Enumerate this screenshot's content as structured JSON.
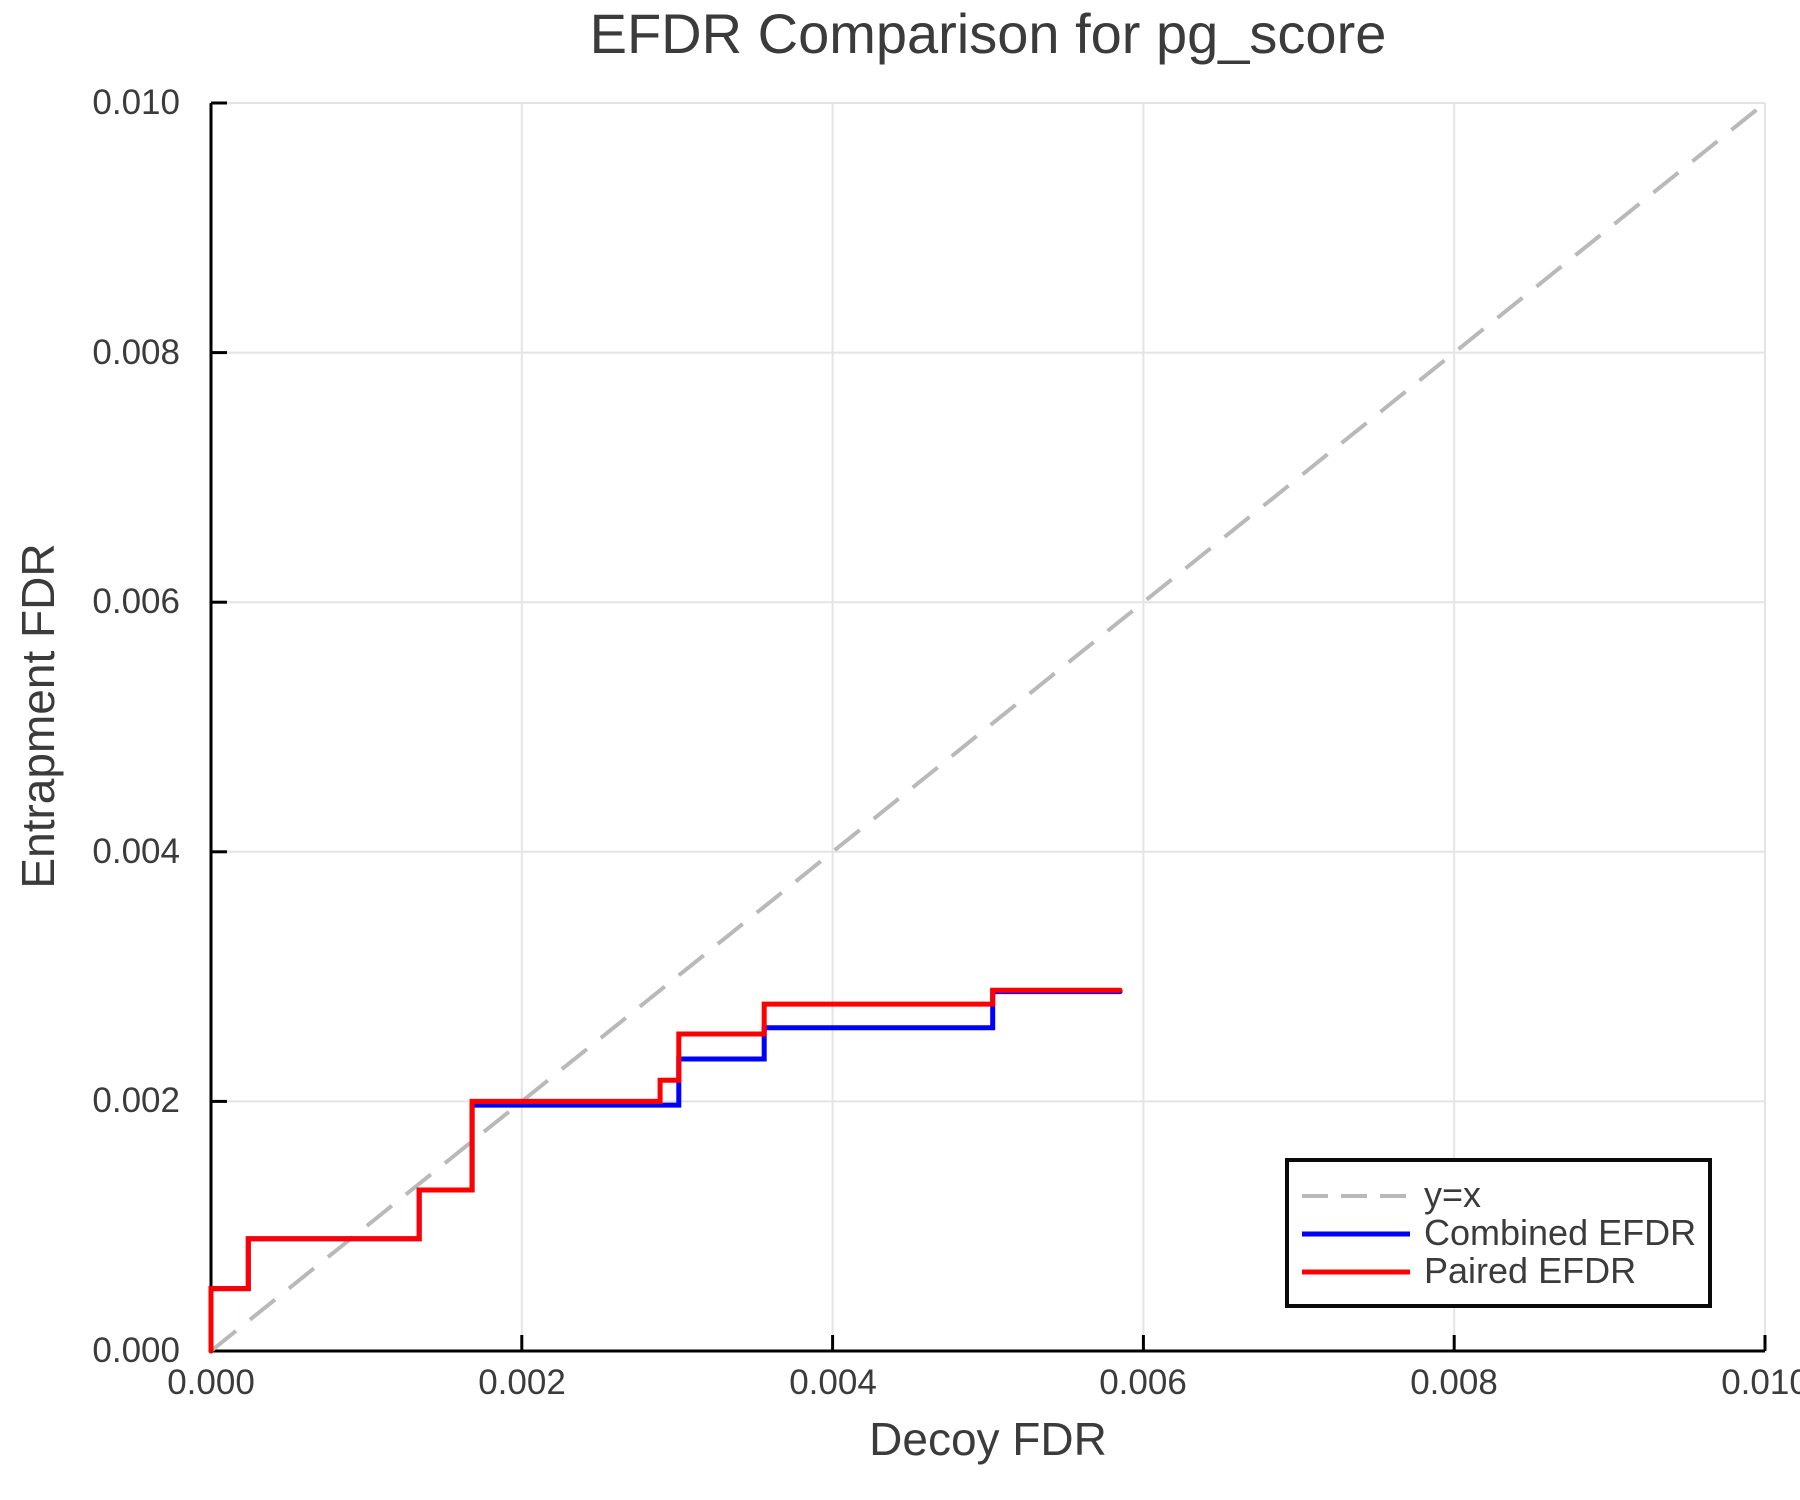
{
  "chart_data": {
    "type": "line",
    "title": "EFDR Comparison for pg_score",
    "xlabel": "Decoy FDR",
    "ylabel": "Entrapment FDR",
    "xlim": [
      0.0,
      0.01
    ],
    "ylim": [
      0.0,
      0.01
    ],
    "x_ticks": [
      0.0,
      0.002,
      0.004,
      0.006,
      0.008,
      0.01
    ],
    "y_ticks": [
      0.0,
      0.002,
      0.004,
      0.006,
      0.008,
      0.01
    ],
    "x_tick_labels": [
      "0.000",
      "0.002",
      "0.004",
      "0.006",
      "0.008",
      "0.010"
    ],
    "y_tick_labels": [
      "0.000",
      "0.002",
      "0.004",
      "0.006",
      "0.008",
      "0.010"
    ],
    "grid": true,
    "grid_color": "#e4e4e4",
    "spine_color": "#000000",
    "text_color": "#3b3b3b",
    "legend_position": "lower right",
    "series": [
      {
        "name": "y=x",
        "color": "#b9b9b9",
        "style": "dashed",
        "line_width": 4,
        "points": [
          [
            0.0,
            0.0
          ],
          [
            0.01,
            0.01
          ]
        ]
      },
      {
        "name": "Combined EFDR",
        "color": "#0000ff",
        "style": "solid",
        "line_width": 5,
        "points": [
          [
            0.0,
            0.0
          ],
          [
            0.0,
            0.0005
          ],
          [
            0.00024,
            0.0005
          ],
          [
            0.00024,
            0.0009
          ],
          [
            0.00134,
            0.0009
          ],
          [
            0.00134,
            0.00129
          ],
          [
            0.00168,
            0.00129
          ],
          [
            0.00168,
            0.00197
          ],
          [
            0.00301,
            0.00197
          ],
          [
            0.00301,
            0.00234
          ],
          [
            0.00356,
            0.00234
          ],
          [
            0.00356,
            0.00259
          ],
          [
            0.00503,
            0.00259
          ],
          [
            0.00503,
            0.00288
          ],
          [
            0.00585,
            0.00288
          ]
        ]
      },
      {
        "name": "Paired EFDR",
        "color": "#ff0000",
        "style": "solid",
        "line_width": 5,
        "points": [
          [
            0.0,
            0.0
          ],
          [
            0.0,
            0.0005
          ],
          [
            0.00024,
            0.0005
          ],
          [
            0.00024,
            0.0009
          ],
          [
            0.00134,
            0.0009
          ],
          [
            0.00134,
            0.00129
          ],
          [
            0.00168,
            0.00129
          ],
          [
            0.00168,
            0.002
          ],
          [
            0.00289,
            0.002
          ],
          [
            0.00289,
            0.00217
          ],
          [
            0.00301,
            0.00217
          ],
          [
            0.00301,
            0.00254
          ],
          [
            0.00356,
            0.00254
          ],
          [
            0.00356,
            0.00278
          ],
          [
            0.00503,
            0.00278
          ],
          [
            0.00503,
            0.00289
          ],
          [
            0.00585,
            0.00289
          ]
        ]
      }
    ]
  }
}
